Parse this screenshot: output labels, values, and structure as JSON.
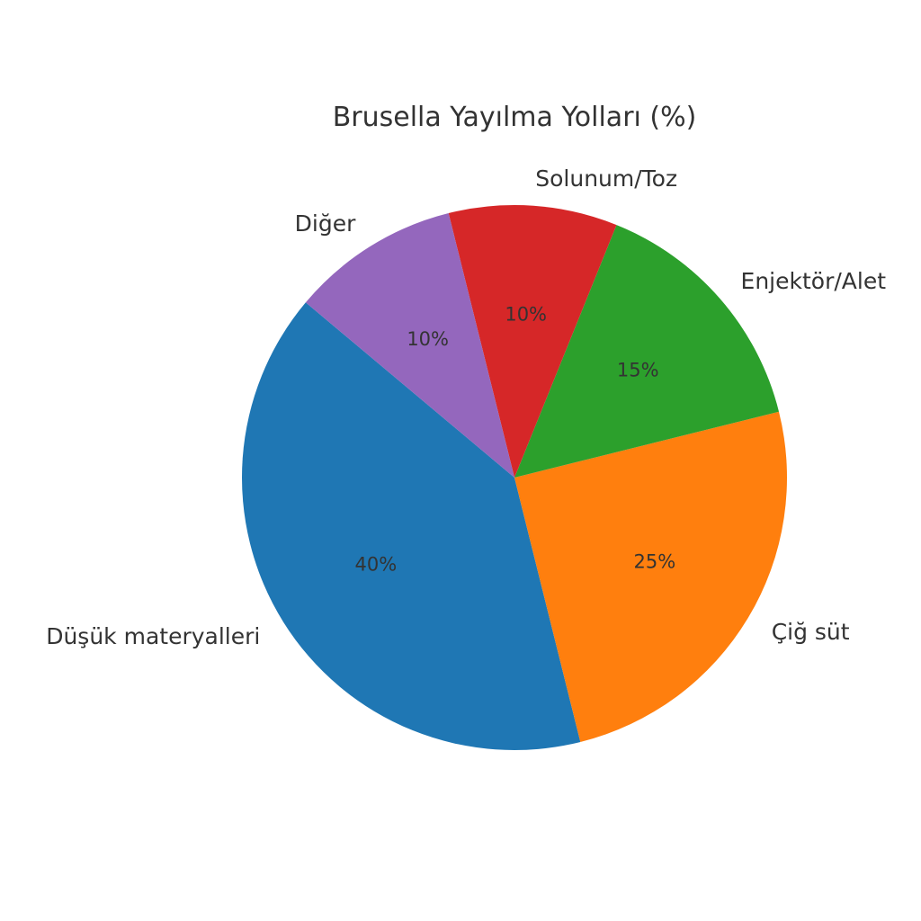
{
  "chart_data": {
    "type": "pie",
    "title": "Brusella Yayılma Yolları (%)",
    "start_angle_deg": 140,
    "direction": "counterclockwise",
    "slices": [
      {
        "label": "Düşük materyalleri",
        "value": 40,
        "pct_label": "40%",
        "color": "#1f77b4"
      },
      {
        "label": "Çiğ süt",
        "value": 25,
        "pct_label": "25%",
        "color": "#ff7f0e"
      },
      {
        "label": "Enjektör/Alet",
        "value": 15,
        "pct_label": "15%",
        "color": "#2ca02c"
      },
      {
        "label": "Solunum/Toz",
        "value": 10,
        "pct_label": "10%",
        "color": "#d62728"
      },
      {
        "label": "Diğer",
        "value": 10,
        "pct_label": "10%",
        "color": "#9467bd"
      }
    ]
  }
}
